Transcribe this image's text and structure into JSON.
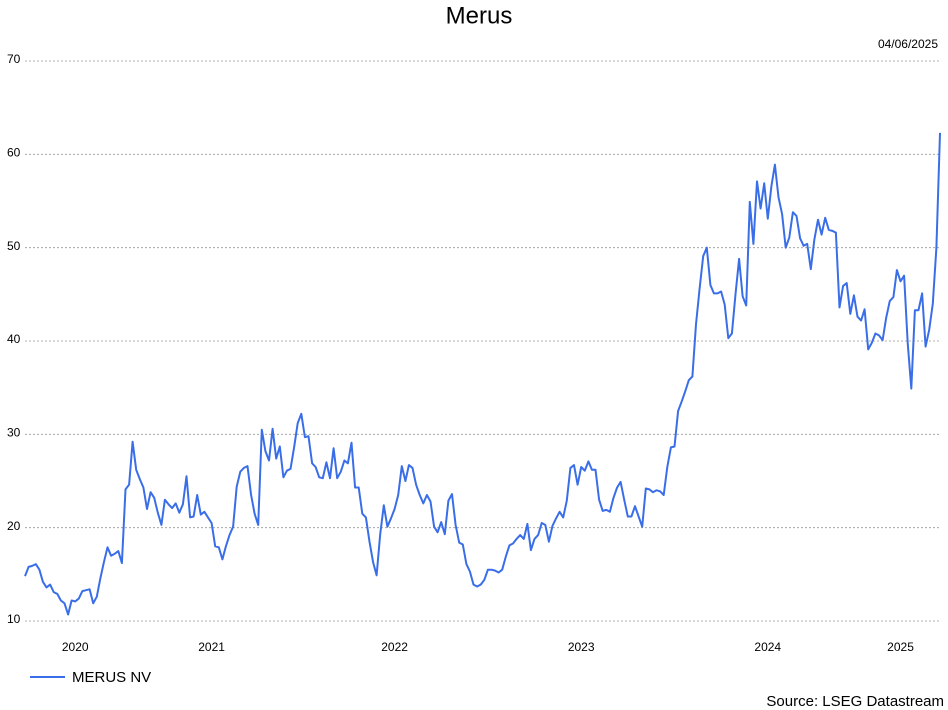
{
  "chart_data": {
    "type": "line",
    "title": "Merus",
    "date": "04/06/2025",
    "source": "Source: LSEG Datastream",
    "categories": [
      null,
      null,
      null,
      null,
      null,
      null,
      null,
      null,
      null,
      null,
      null,
      null,
      null,
      null,
      "2020",
      null,
      null,
      null,
      null,
      null,
      null,
      null,
      null,
      null,
      null,
      null,
      null,
      null,
      null,
      null,
      null,
      null,
      null,
      null,
      null,
      null,
      null,
      null,
      null,
      null,
      null,
      null,
      null,
      null,
      null,
      null,
      null,
      null,
      null,
      null,
      null,
      null,
      "2021",
      null,
      null,
      null,
      null,
      null,
      null,
      null,
      null,
      null,
      null,
      null,
      null,
      null,
      null,
      null,
      null,
      null,
      null,
      null,
      null,
      null,
      null,
      null,
      null,
      null,
      null,
      null,
      null,
      null,
      null,
      null,
      null,
      null,
      null,
      null,
      null,
      null,
      null,
      null,
      null,
      null,
      null,
      null,
      null,
      null,
      null,
      null,
      null,
      null,
      null,
      "2022",
      null,
      null,
      null,
      null,
      null,
      null,
      null,
      null,
      null,
      null,
      null,
      null,
      null,
      null,
      null,
      null,
      null,
      null,
      null,
      null,
      null,
      null,
      null,
      null,
      null,
      null,
      null,
      null,
      null,
      null,
      null,
      null,
      null,
      null,
      null,
      null,
      null,
      null,
      null,
      null,
      null,
      null,
      null,
      null,
      null,
      null,
      null,
      null,
      null,
      null,
      null,
      "2023",
      null,
      null,
      null,
      null,
      null,
      null,
      null,
      null,
      null,
      null,
      null,
      null,
      null,
      null,
      null,
      null,
      null,
      null,
      null,
      null,
      null,
      null,
      null,
      null,
      null,
      null,
      null,
      null,
      null,
      null,
      null,
      null,
      null,
      null,
      null,
      null,
      null,
      null,
      null,
      null,
      null,
      null,
      null,
      null,
      null,
      null,
      null,
      null,
      null,
      null,
      null,
      "2024",
      null,
      null,
      null,
      null,
      null,
      null,
      null,
      null,
      null,
      null,
      null,
      null,
      null,
      null,
      null,
      null,
      null,
      null,
      null,
      null,
      null,
      null,
      null,
      null,
      null,
      null,
      null,
      null,
      null,
      null,
      null,
      null,
      null,
      null,
      null,
      null,
      "2025",
      null,
      null,
      null,
      null,
      null,
      null,
      null,
      null,
      null,
      null,
      null
    ],
    "series": [
      {
        "name": "MERUS NV",
        "color": "#3a6ee8",
        "values": [
          14.8,
          15.8,
          15.9,
          16.1,
          15.5,
          14.2,
          13.6,
          13.9,
          13.1,
          12.9,
          12.2,
          11.9,
          10.7,
          12.2,
          12.1,
          12.4,
          13.2,
          13.3,
          13.4,
          11.9,
          12.6,
          14.6,
          16.3,
          17.9,
          17.0,
          17.2,
          17.5,
          16.2,
          24.1,
          24.6,
          29.2,
          26.2,
          25.2,
          24.3,
          22.0,
          23.8,
          23.2,
          21.6,
          20.3,
          23.0,
          22.5,
          22.1,
          22.6,
          21.6,
          22.5,
          25.5,
          21.1,
          21.2,
          23.5,
          21.4,
          21.7,
          21.1,
          20.5,
          18.0,
          17.9,
          16.6,
          18.0,
          19.2,
          20.1,
          24.4,
          26.0,
          26.4,
          26.6,
          23.5,
          21.5,
          20.3,
          30.5,
          28.2,
          27.2,
          30.6,
          27.4,
          28.7,
          25.4,
          26.1,
          26.3,
          28.6,
          31.2,
          32.2,
          29.7,
          29.8,
          26.9,
          26.5,
          25.4,
          25.3,
          27.0,
          25.3,
          28.5,
          25.3,
          26.0,
          27.2,
          26.9,
          29.1,
          24.3,
          24.3,
          21.5,
          21.1,
          18.5,
          16.3,
          14.9,
          19.3,
          22.4,
          20.1,
          21.0,
          22.0,
          23.5,
          26.6,
          25.0,
          26.7,
          26.4,
          24.6,
          23.5,
          22.6,
          23.5,
          22.8,
          20.1,
          19.5,
          20.6,
          19.3,
          22.9,
          23.6,
          20.3,
          18.4,
          18.2,
          16.1,
          15.3,
          13.9,
          13.7,
          13.9,
          14.4,
          15.5,
          15.5,
          15.4,
          15.2,
          15.5,
          16.9,
          18.1,
          18.3,
          18.8,
          19.2,
          18.8,
          20.4,
          17.6,
          18.8,
          19.2,
          20.5,
          20.3,
          18.5,
          20.2,
          21.0,
          21.7,
          21.1,
          22.9,
          26.4,
          26.7,
          24.6,
          26.5,
          26.1,
          27.1,
          26.2,
          26.2,
          23.0,
          21.8,
          21.9,
          21.7,
          23.2,
          24.3,
          24.9,
          23.0,
          21.2,
          21.2,
          22.3,
          21.2,
          20.1,
          24.2,
          24.1,
          23.8,
          24.0,
          23.9,
          23.5,
          26.5,
          28.6,
          28.7,
          32.5,
          33.5,
          34.6,
          35.8,
          36.2,
          41.8,
          45.6,
          49.1,
          50.0,
          46.0,
          45.1,
          45.1,
          45.3,
          43.9,
          40.3,
          40.8,
          45.0,
          48.8,
          44.8,
          43.8,
          54.9,
          50.4,
          57.1,
          54.2,
          56.9,
          53.1,
          56.6,
          58.9,
          55.4,
          53.6,
          50.0,
          51.1,
          53.8,
          53.4,
          51.0,
          50.2,
          50.4,
          47.7,
          50.9,
          53.0,
          51.4,
          53.2,
          51.9,
          51.8,
          51.6,
          43.6,
          45.9,
          46.2,
          42.9,
          44.9,
          42.6,
          42.2,
          43.4,
          39.1,
          39.8,
          40.8,
          40.6,
          40.1,
          42.5,
          44.3,
          44.7,
          47.6,
          46.4,
          47.0,
          39.8,
          34.9,
          43.3,
          43.3,
          45.1,
          39.4,
          41.2,
          44.0,
          50.0,
          62.3
        ]
      }
    ],
    "ylim": [
      10,
      70
    ],
    "yticks": [
      10,
      20,
      30,
      40,
      50,
      60,
      70
    ],
    "grid": true,
    "legend": "bottom-left"
  }
}
